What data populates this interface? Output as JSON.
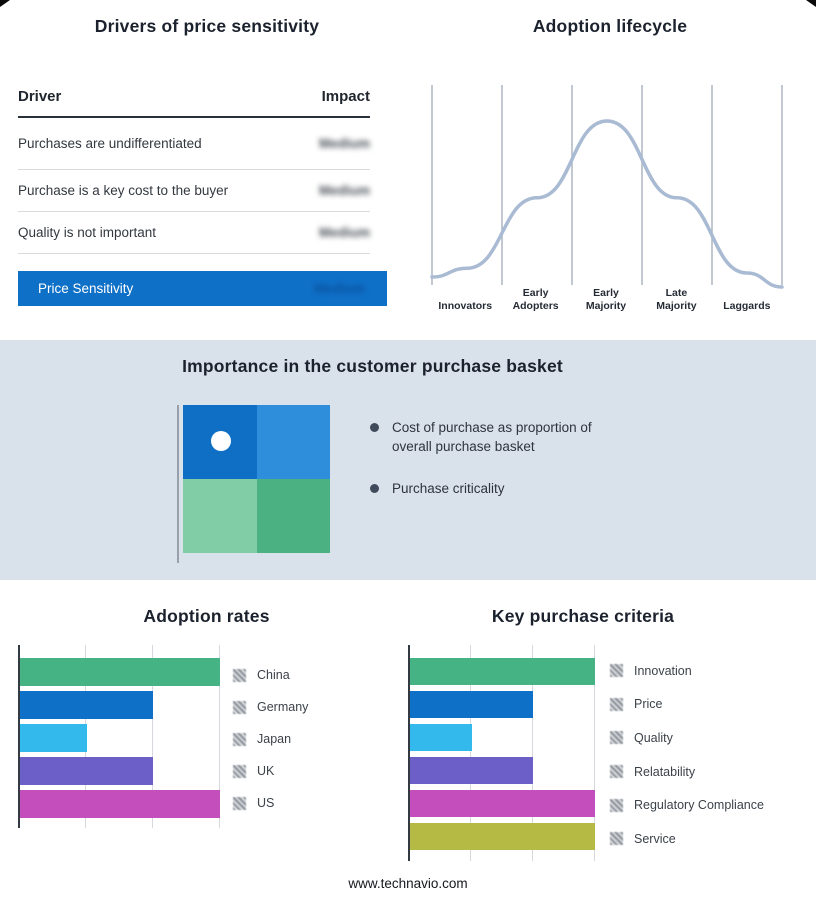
{
  "footer": "www.technavio.com",
  "colors": {
    "accent_blue": "#0f70c8",
    "band_background": "#d9e1eb",
    "curve": "#a9bad3",
    "bullet_marker": "#3f4a5a"
  },
  "basket": {
    "title": "Importance in the customer purchase basket",
    "bullets": [
      [
        "Cost of purchase as proportion of",
        "overall purchase basket"
      ],
      [
        "Purchase criticality"
      ]
    ],
    "matrix_colors": [
      "#0e6fc5",
      "#2f8edb",
      "#80cda6",
      "#4bb183"
    ]
  },
  "chart_data": [
    {
      "type": "table",
      "title": "Drivers of price sensitivity",
      "columns": [
        "Driver",
        "Impact"
      ],
      "rows": [
        [
          "Purchases are undifferentiated",
          "Medium"
        ],
        [
          "Purchase is a key cost to the buyer",
          "Medium"
        ],
        [
          "Quality is not important",
          "Medium"
        ]
      ],
      "summary_row": [
        "Price Sensitivity",
        "Medium"
      ],
      "impact_blurred": true
    },
    {
      "type": "line",
      "title": "Adoption lifecycle",
      "shape": "bell-curve",
      "categories": [
        "Innovators",
        "Early Adopters",
        "Early Majority",
        "Late Majority",
        "Laggards"
      ],
      "values": [
        0.08,
        0.52,
        1.0,
        0.52,
        0.05
      ],
      "ylim": [
        0,
        1
      ],
      "grid": "vertical",
      "stage_lines": [
        [
          "Innovators"
        ],
        [
          "Early",
          "Adopters"
        ],
        [
          "Early",
          "Majority"
        ],
        [
          "Late",
          "Majority"
        ],
        [
          "Laggards"
        ]
      ]
    },
    {
      "type": "bar",
      "title": "Adoption rates",
      "orientation": "horizontal",
      "categories": [
        "China",
        "Germany",
        "Japan",
        "UK",
        "US"
      ],
      "values": [
        3,
        2,
        1,
        2,
        3
      ],
      "xlim": [
        0,
        3
      ],
      "grid": "vertical",
      "legend_position": "right",
      "colors": [
        "#45b383",
        "#0f70c8",
        "#33b9ec",
        "#6c5fc7",
        "#c44fbc"
      ]
    },
    {
      "type": "bar",
      "title": "Key purchase criteria",
      "orientation": "horizontal",
      "categories": [
        "Innovation",
        "Price",
        "Quality",
        "Relatability",
        "Regulatory Compliance",
        "Service"
      ],
      "values": [
        3,
        2,
        1,
        2,
        3,
        3
      ],
      "xlim": [
        0,
        3
      ],
      "grid": "vertical",
      "legend_position": "right",
      "colors": [
        "#45b383",
        "#0f70c8",
        "#33b9ec",
        "#6c5fc7",
        "#c44fbc",
        "#b5ba45"
      ]
    }
  ]
}
